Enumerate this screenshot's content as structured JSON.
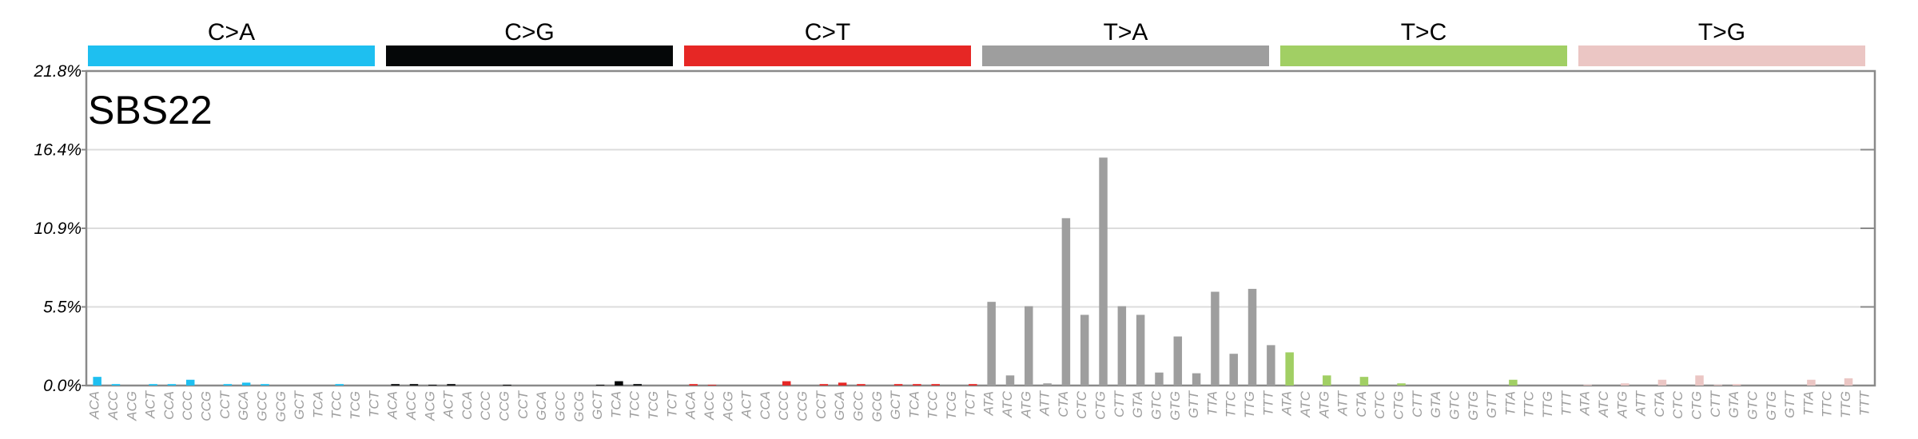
{
  "chart_data": {
    "type": "bar",
    "title": "SBS22",
    "xlabel": "",
    "ylabel": "",
    "ylim": [
      0,
      21.8
    ],
    "y_ticks": [
      "0.0%",
      "5.5%",
      "10.9%",
      "16.4%",
      "21.8%"
    ],
    "y_tick_values": [
      0,
      5.45,
      10.9,
      16.35,
      21.8
    ],
    "grid": true,
    "mutation_types": [
      {
        "name": "C>A",
        "color": "#1ebff0"
      },
      {
        "name": "C>G",
        "color": "#050708"
      },
      {
        "name": "C>T",
        "color": "#e62725"
      },
      {
        "name": "T>A",
        "color": "#9e9e9e"
      },
      {
        "name": "T>C",
        "color": "#a1cf64"
      },
      {
        "name": "T>G",
        "color": "#ebc6c4"
      }
    ],
    "categories": [
      "ACA",
      "ACC",
      "ACG",
      "ACT",
      "CCA",
      "CCC",
      "CCG",
      "CCT",
      "GCA",
      "GCC",
      "GCG",
      "GCT",
      "TCA",
      "TCC",
      "TCG",
      "TCT",
      "ACA",
      "ACC",
      "ACG",
      "ACT",
      "CCA",
      "CCC",
      "CCG",
      "CCT",
      "GCA",
      "GCC",
      "GCG",
      "GCT",
      "TCA",
      "TCC",
      "TCG",
      "TCT",
      "ACA",
      "ACC",
      "ACG",
      "ACT",
      "CCA",
      "CCC",
      "CCG",
      "CCT",
      "GCA",
      "GCC",
      "GCG",
      "GCT",
      "TCA",
      "TCC",
      "TCG",
      "TCT",
      "ATA",
      "ATC",
      "ATG",
      "ATT",
      "CTA",
      "CTC",
      "CTG",
      "CTT",
      "GTA",
      "GTC",
      "GTG",
      "GTT",
      "TTA",
      "TTC",
      "TTG",
      "TTT",
      "ATA",
      "ATC",
      "ATG",
      "ATT",
      "CTA",
      "CTC",
      "CTG",
      "CTT",
      "GTA",
      "GTC",
      "GTG",
      "GTT",
      "TTA",
      "TTC",
      "TTG",
      "TTT",
      "ATA",
      "ATC",
      "ATG",
      "ATT",
      "CTA",
      "CTC",
      "CTG",
      "CTT",
      "GTA",
      "GTC",
      "GTG",
      "GTT",
      "TTA",
      "TTC",
      "TTG",
      "TTT"
    ],
    "values": [
      0.6,
      0.1,
      0.0,
      0.1,
      0.1,
      0.4,
      0.0,
      0.1,
      0.2,
      0.1,
      0.0,
      0.0,
      0.0,
      0.1,
      0.0,
      0.0,
      0.1,
      0.1,
      0.05,
      0.1,
      0.0,
      0.0,
      0.05,
      0.0,
      0.0,
      0.0,
      0.0,
      0.05,
      0.3,
      0.1,
      0.0,
      0.0,
      0.1,
      0.05,
      0.0,
      0.0,
      0.0,
      0.3,
      0.0,
      0.1,
      0.2,
      0.1,
      0.0,
      0.1,
      0.1,
      0.1,
      0.0,
      0.1,
      5.8,
      0.7,
      5.5,
      0.15,
      11.6,
      4.9,
      15.8,
      5.5,
      4.9,
      0.9,
      3.4,
      0.85,
      6.5,
      2.2,
      6.7,
      2.8,
      2.3,
      0.0,
      0.7,
      0.0,
      0.6,
      0.0,
      0.15,
      0.0,
      0.0,
      0.0,
      0.0,
      0.0,
      0.4,
      0.0,
      0.0,
      0.0,
      0.05,
      0.0,
      0.15,
      0.0,
      0.4,
      0.0,
      0.7,
      0.05,
      0.1,
      0.0,
      0.0,
      0.0,
      0.4,
      0.0,
      0.5,
      0.0
    ]
  }
}
